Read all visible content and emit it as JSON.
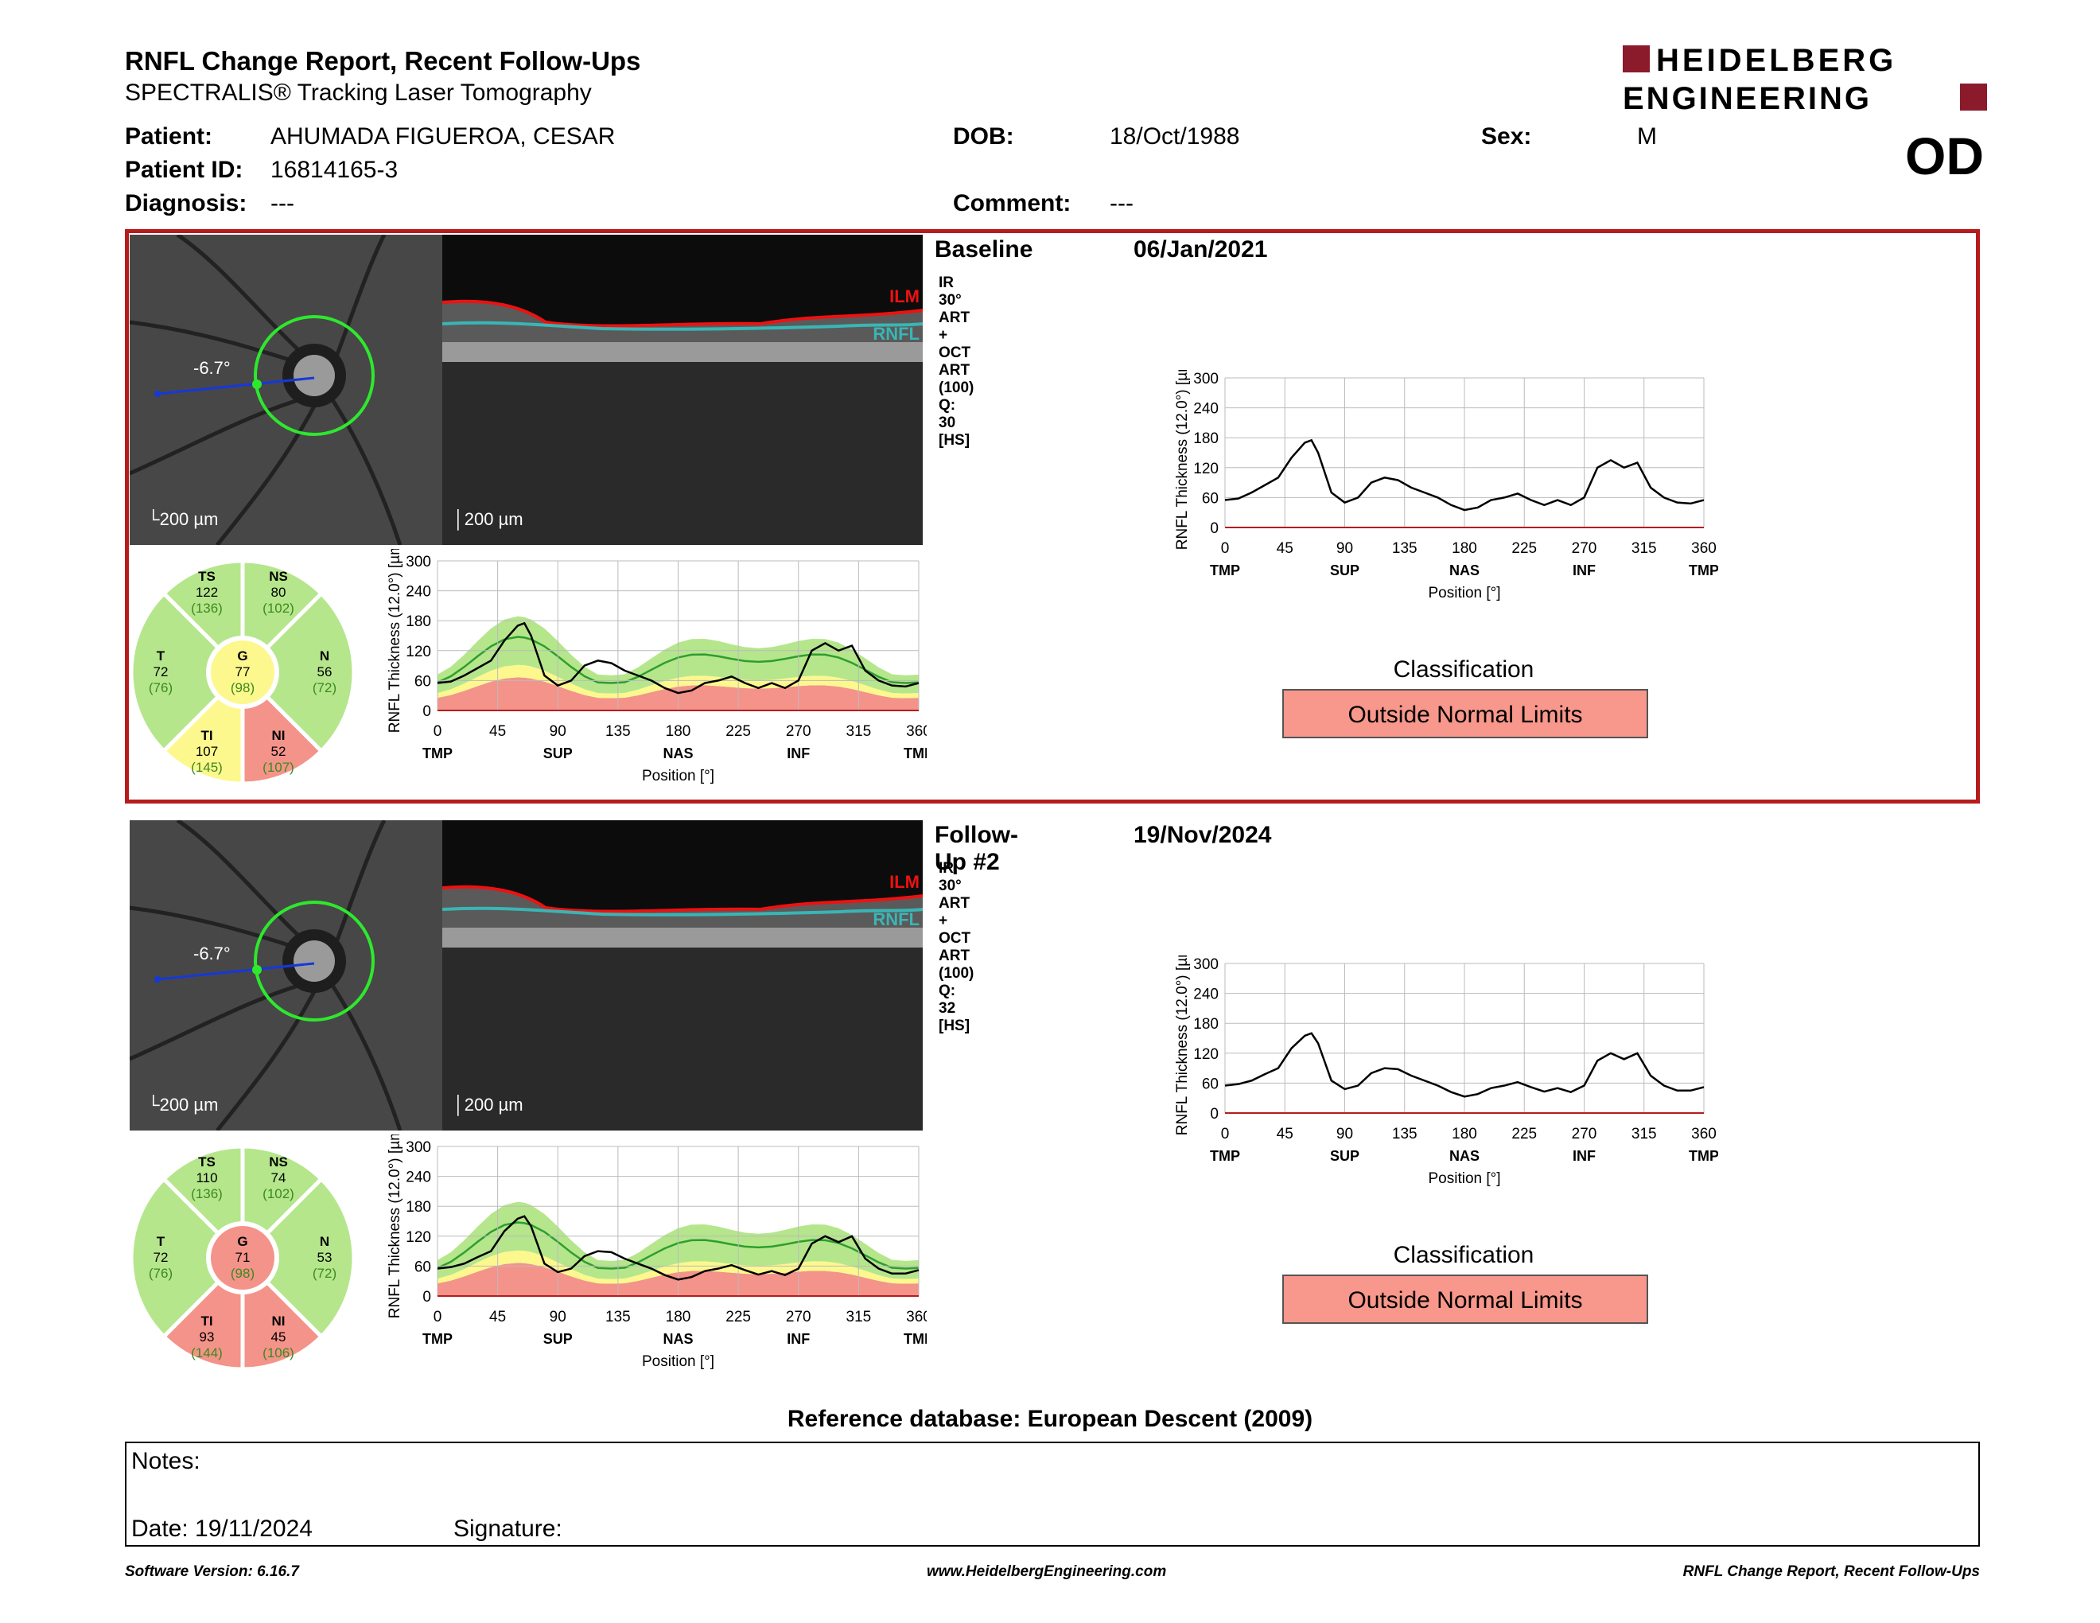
{
  "header": {
    "title": "RNFL Change Report, Recent Follow-Ups",
    "subtitle": "SPECTRALIS® Tracking Laser Tomography",
    "logo_line1": "HEIDELBERG",
    "logo_line2": "ENGINEERING",
    "logo_color": "#8b1a2b"
  },
  "patient": {
    "patient_label": "Patient:",
    "patient_value": "AHUMADA FIGUEROA, CESAR",
    "id_label": "Patient ID:",
    "id_value": "16814165-3",
    "diagnosis_label": "Diagnosis:",
    "diagnosis_value": "---",
    "dob_label": "DOB:",
    "dob_value": "18/Oct/1988",
    "comment_label": "Comment:",
    "comment_value": "---",
    "sex_label": "Sex:",
    "sex_value": "M",
    "eye": "OD"
  },
  "common": {
    "scale": "200 µm",
    "angle": "-6.7°",
    "ilm": "ILM",
    "rnfl": "RNFL",
    "ylabel": "RNFL Thickness (12.0°) [µm]",
    "xlabel": "Position [°]",
    "yticks": [
      "300",
      "240",
      "180",
      "120",
      "60",
      "0"
    ],
    "xticks": [
      "0",
      "45",
      "90",
      "135",
      "180",
      "225",
      "270",
      "315",
      "360"
    ],
    "xregions": [
      "TMP",
      "SUP",
      "NAS",
      "INF",
      "TMP"
    ],
    "classification_label": "Classification"
  },
  "visits": [
    {
      "label": "Baseline",
      "date": "06/Jan/2021",
      "acquisition": "IR 30° ART + OCT ART (100) Q: 30 [HS]",
      "classification": "Outside Normal Limits",
      "sectors": {
        "TS": {
          "value": "122",
          "normal": "(136)",
          "status": "green"
        },
        "NS": {
          "value": "80",
          "normal": "(102)",
          "status": "green"
        },
        "T": {
          "value": "72",
          "normal": "(76)",
          "status": "green"
        },
        "G": {
          "value": "77",
          "normal": "(98)",
          "status": "yellow"
        },
        "N": {
          "value": "56",
          "normal": "(72)",
          "status": "green"
        },
        "TI": {
          "value": "107",
          "normal": "(145)",
          "status": "yellow"
        },
        "NI": {
          "value": "52",
          "normal": "(107)",
          "status": "red"
        }
      }
    },
    {
      "label": "Follow-Up #2",
      "date": "19/Nov/2024",
      "acquisition": "IR 30° ART + OCT ART (100) Q: 32 [HS]",
      "classification": "Outside Normal Limits",
      "sectors": {
        "TS": {
          "value": "110",
          "normal": "(136)",
          "status": "green"
        },
        "NS": {
          "value": "74",
          "normal": "(102)",
          "status": "green"
        },
        "T": {
          "value": "72",
          "normal": "(76)",
          "status": "green"
        },
        "G": {
          "value": "71",
          "normal": "(98)",
          "status": "red"
        },
        "N": {
          "value": "53",
          "normal": "(72)",
          "status": "green"
        },
        "TI": {
          "value": "93",
          "normal": "(144)",
          "status": "red"
        },
        "NI": {
          "value": "45",
          "normal": "(106)",
          "status": "red"
        }
      }
    }
  ],
  "chart_data": [
    {
      "type": "line",
      "series": [
        {
          "name": "Baseline",
          "x": [
            0,
            10,
            20,
            30,
            40,
            50,
            60,
            65,
            70,
            80,
            90,
            100,
            110,
            120,
            130,
            140,
            150,
            160,
            170,
            180,
            190,
            200,
            210,
            220,
            230,
            240,
            250,
            260,
            270,
            280,
            290,
            300,
            310,
            320,
            330,
            340,
            350,
            360
          ],
          "values": [
            55,
            58,
            70,
            85,
            100,
            140,
            170,
            175,
            150,
            70,
            50,
            60,
            90,
            100,
            95,
            80,
            70,
            60,
            45,
            35,
            40,
            55,
            60,
            68,
            55,
            45,
            55,
            45,
            60,
            120,
            135,
            120,
            130,
            80,
            60,
            50,
            48,
            55
          ]
        }
      ],
      "ylim": [
        0,
        300
      ]
    },
    {
      "type": "line",
      "series": [
        {
          "name": "Follow-Up #2",
          "x": [
            0,
            10,
            20,
            30,
            40,
            50,
            60,
            65,
            70,
            80,
            90,
            100,
            110,
            120,
            130,
            140,
            150,
            160,
            170,
            180,
            190,
            200,
            210,
            220,
            230,
            240,
            250,
            260,
            270,
            280,
            290,
            300,
            310,
            320,
            330,
            340,
            350,
            360
          ],
          "values": [
            55,
            58,
            65,
            78,
            90,
            130,
            155,
            160,
            140,
            65,
            48,
            55,
            80,
            90,
            88,
            75,
            65,
            55,
            42,
            33,
            38,
            50,
            55,
            62,
            52,
            43,
            50,
            42,
            55,
            105,
            120,
            108,
            120,
            75,
            55,
            45,
            45,
            52
          ]
        }
      ],
      "ylim": [
        0,
        300
      ]
    }
  ],
  "footer": {
    "reference_db": "Reference database: European Descent (2009)",
    "notes_label": "Notes:",
    "date_label": "Date: 19/11/2024",
    "signature_label": "Signature:",
    "software_version": "Software Version: 6.16.7",
    "website": "www.HeidelbergEngineering.com",
    "report_name": "RNFL Change Report, Recent Follow-Ups"
  }
}
